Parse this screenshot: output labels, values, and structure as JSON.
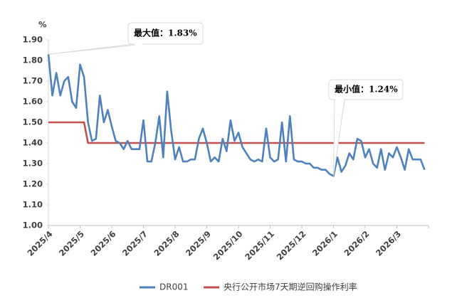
{
  "chart_data": {
    "type": "line",
    "y_unit": "%",
    "categories": [
      "2025/4",
      null,
      null,
      null,
      null,
      null,
      null,
      null,
      "2025/5",
      null,
      null,
      null,
      null,
      null,
      null,
      null,
      "2025/6",
      null,
      null,
      null,
      null,
      null,
      null,
      null,
      "2025/7",
      null,
      null,
      null,
      null,
      null,
      null,
      null,
      "2025/8",
      null,
      null,
      null,
      null,
      null,
      null,
      null,
      "2025/9",
      null,
      null,
      null,
      null,
      null,
      null,
      null,
      "2025/10",
      null,
      null,
      null,
      null,
      null,
      null,
      null,
      "2025/11",
      null,
      null,
      null,
      null,
      null,
      null,
      null,
      "2025/12",
      null,
      null,
      null,
      null,
      null,
      null,
      null,
      "2026/1",
      null,
      null,
      null,
      null,
      null,
      null,
      null,
      "2026/2",
      null,
      null,
      null,
      null,
      null,
      null,
      null,
      "2026/3",
      null,
      null,
      null,
      null,
      null,
      null,
      null
    ],
    "series": [
      {
        "name": "DR001",
        "color": "#4f81bd",
        "values": [
          1.83,
          1.63,
          1.74,
          1.63,
          1.7,
          1.72,
          1.6,
          1.57,
          1.78,
          1.72,
          1.5,
          1.41,
          1.42,
          1.63,
          1.5,
          1.56,
          1.48,
          1.41,
          1.4,
          1.37,
          1.41,
          1.37,
          1.37,
          1.37,
          1.51,
          1.31,
          1.31,
          1.4,
          1.53,
          1.33,
          1.65,
          1.46,
          1.32,
          1.38,
          1.31,
          1.31,
          1.32,
          1.32,
          1.42,
          1.47,
          1.4,
          1.31,
          1.33,
          1.31,
          1.42,
          1.36,
          1.51,
          1.41,
          1.45,
          1.38,
          1.35,
          1.32,
          1.31,
          1.32,
          1.31,
          1.47,
          1.33,
          1.31,
          1.32,
          1.5,
          1.31,
          1.53,
          1.32,
          1.31,
          1.31,
          1.3,
          1.3,
          1.28,
          1.28,
          1.27,
          1.27,
          1.25,
          1.24,
          1.33,
          1.26,
          1.29,
          1.35,
          1.32,
          1.42,
          1.41,
          1.33,
          1.37,
          1.3,
          1.28,
          1.37,
          1.27,
          1.35,
          1.33,
          1.38,
          1.33,
          1.27,
          1.37,
          1.32,
          1.32,
          1.32,
          1.27
        ]
      },
      {
        "name": "央行公开市场7天期逆回购操作利率",
        "color": "#c0504d",
        "values": [
          1.5,
          1.5,
          1.5,
          1.5,
          1.5,
          1.5,
          1.5,
          1.5,
          1.5,
          1.5,
          1.4,
          1.4,
          1.4,
          1.4,
          1.4,
          1.4,
          1.4,
          1.4,
          1.4,
          1.4,
          1.4,
          1.4,
          1.4,
          1.4,
          1.4,
          1.4,
          1.4,
          1.4,
          1.4,
          1.4,
          1.4,
          1.4,
          1.4,
          1.4,
          1.4,
          1.4,
          1.4,
          1.4,
          1.4,
          1.4,
          1.4,
          1.4,
          1.4,
          1.4,
          1.4,
          1.4,
          1.4,
          1.4,
          1.4,
          1.4,
          1.4,
          1.4,
          1.4,
          1.4,
          1.4,
          1.4,
          1.4,
          1.4,
          1.4,
          1.4,
          1.4,
          1.4,
          1.4,
          1.4,
          1.4,
          1.4,
          1.4,
          1.4,
          1.4,
          1.4,
          1.4,
          1.4,
          1.4,
          1.4,
          1.4,
          1.4,
          1.4,
          1.4,
          1.4,
          1.4,
          1.4,
          1.4,
          1.4,
          1.4,
          1.4,
          1.4,
          1.4,
          1.4,
          1.4,
          1.4,
          1.4,
          1.4,
          1.4,
          1.4,
          1.4,
          1.4
        ]
      }
    ],
    "ylim": [
      1.0,
      1.9
    ],
    "yticks": [
      {
        "value": 1.0,
        "label": "1.00"
      },
      {
        "value": 1.1,
        "label": "1.10"
      },
      {
        "value": 1.2,
        "label": "1.20"
      },
      {
        "value": 1.3,
        "label": "1.30"
      },
      {
        "value": 1.4,
        "label": "1.40"
      },
      {
        "value": 1.5,
        "label": "1.50"
      },
      {
        "value": 1.6,
        "label": "1.60"
      },
      {
        "value": 1.7,
        "label": "1.70"
      },
      {
        "value": 1.8,
        "label": "1.80"
      },
      {
        "value": 1.9,
        "label": "1.90"
      }
    ],
    "annotations": [
      "最大值：1.83%",
      "最小值：1.24%"
    ],
    "grid": false,
    "legend": "bottom"
  }
}
